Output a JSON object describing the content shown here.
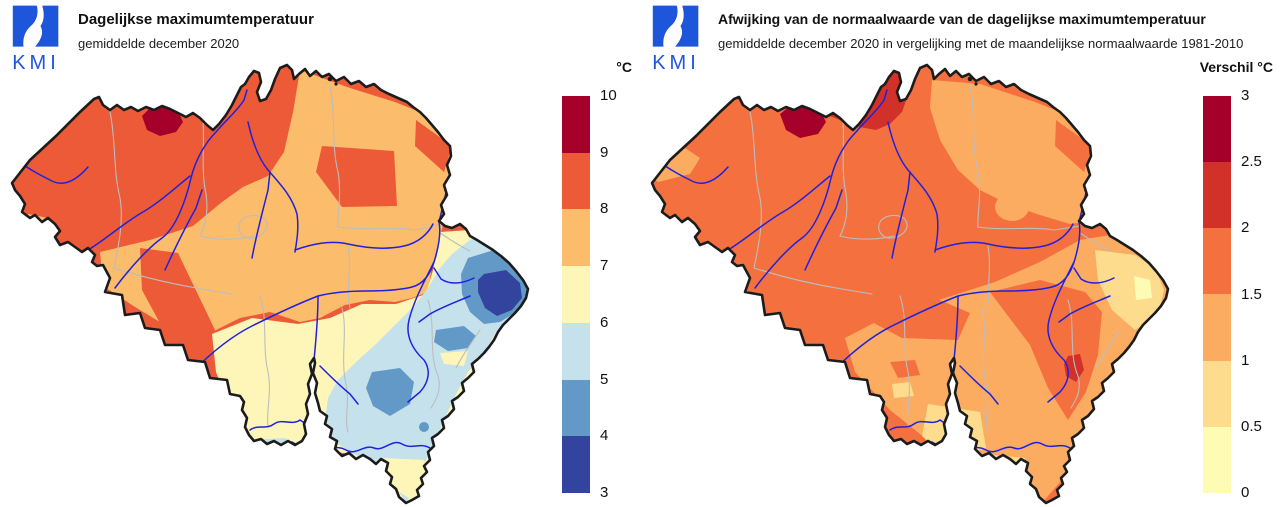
{
  "branding": {
    "kmi_blue": "#1E56DB",
    "logo_text": "KMI"
  },
  "left_panel": {
    "title": "Dagelijkse maximumtemperatuur",
    "subtitle": "gemiddelde december 2020",
    "legend": {
      "title": "°C",
      "tick_labels": [
        "10",
        "9",
        "8",
        "7",
        "6",
        "5",
        "4",
        "3"
      ],
      "colors": [
        "#A50029",
        "#EC5A38",
        "#FBBC6C",
        "#FEF6B8",
        "#C4E1EC",
        "#6299C6",
        "#33449E"
      ]
    }
  },
  "right_panel": {
    "title": "Afwijking van de normaalwaarde van de dagelijkse maximumtemperatuur",
    "subtitle": "gemiddelde december 2020 in vergelijking met de maandelijkse normaalwaarde 1981-2010",
    "legend": {
      "title": "Verschil °C",
      "tick_labels": [
        "3",
        "2.5",
        "2",
        "1.5",
        "1",
        "0.5",
        "0"
      ],
      "colors": [
        "#A50029",
        "#D2312A",
        "#F4713F",
        "#FBAC61",
        "#FDDC8D",
        "#FEFCB4"
      ]
    }
  },
  "map": {
    "border_color": "#1C1C1C",
    "province_border_color": "#BDBDBD",
    "river_color": "#2121DD"
  },
  "chart_data": {
    "type": "heatmap",
    "title": "Dagelijkse maximumtemperatuur / Afwijking van de normaalwaarde",
    "legend_position": "right",
    "series": [
      {
        "name": "Dagelijkse maximumtemperatuur (°C)",
        "scale_ticks": [
          10,
          9,
          8,
          7,
          6,
          5,
          4,
          3
        ],
        "scale_colors": [
          "#A50029",
          "#EC5A38",
          "#FBBC6C",
          "#FEF6B8",
          "#C4E1EC",
          "#6299C6",
          "#33449E"
        ]
      },
      {
        "name": "Verschil (°C)",
        "scale_ticks": [
          3,
          2.5,
          2,
          1.5,
          1,
          0.5,
          0
        ],
        "scale_colors": [
          "#A50029",
          "#D2312A",
          "#F4713F",
          "#FBAC61",
          "#FDDC8D",
          "#FEFCB4"
        ]
      }
    ]
  }
}
